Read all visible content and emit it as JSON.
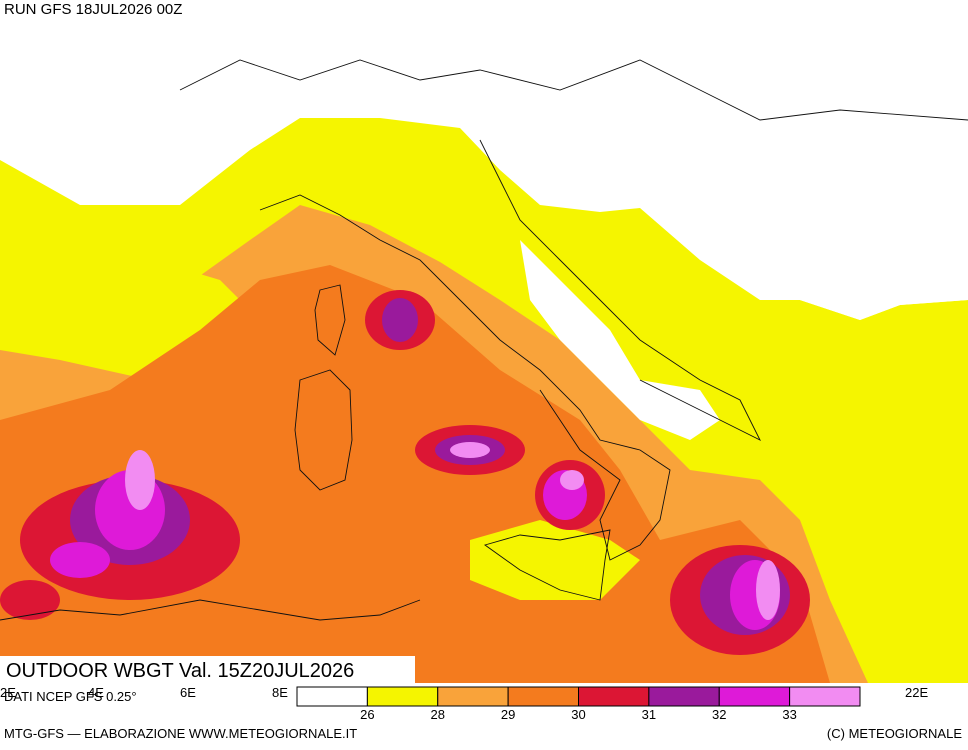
{
  "header": {
    "run": "RUN GFS 18JUL2026 00Z"
  },
  "legend": {
    "title": "OUTDOOR WBGT Val. 15Z20JUL2026",
    "source": "DATI NCEP GFS 0.25°",
    "colors": [
      "#ffffff",
      "#f5f500",
      "#f9a33a",
      "#f47b1e",
      "#dc1634",
      "#9a1a9c",
      "#de1ad8",
      "#f28cf2"
    ],
    "thresholds": [
      26,
      28,
      29,
      30,
      31,
      32,
      33
    ]
  },
  "axis": {
    "labels": [
      "2E",
      "4E",
      "6E",
      "8E",
      "22E"
    ]
  },
  "footer": {
    "left": "MTG-GFS — ELABORAZIONE WWW.METEOGIORNALE.IT",
    "right": "(C) METEOGIORNALE"
  }
}
